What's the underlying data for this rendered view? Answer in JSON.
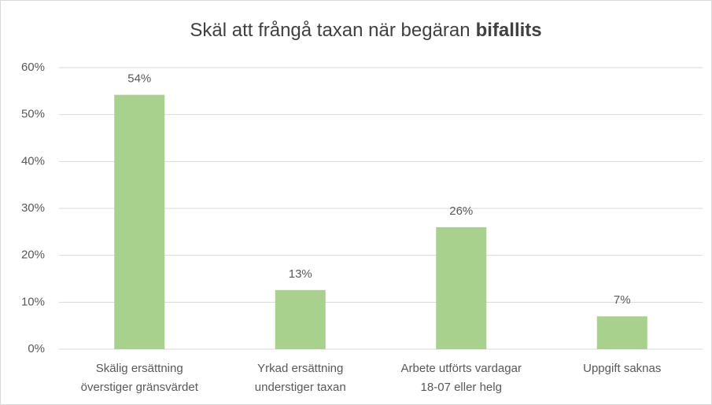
{
  "chart_data": {
    "type": "bar",
    "title": [
      "Skäl att frångå taxan när begäran",
      "bifallits"
    ],
    "categories": [
      [
        "Skälig ersättning",
        "överstiger gränsvärdet"
      ],
      [
        "Yrkad ersättning",
        "understiger taxan"
      ],
      [
        "Arbete utförts vardagar",
        "18-07 eller helg"
      ],
      [
        "Uppgift saknas"
      ]
    ],
    "values": [
      54.2,
      12.6,
      26,
      7
    ],
    "value_labels": [
      "54%",
      "13%",
      "26%",
      "7%"
    ],
    "color": "#a9d18e",
    "ylim": [
      0,
      60
    ],
    "yticks": [
      {
        "value": 0,
        "label": "0%"
      },
      {
        "value": 10,
        "label": "10%"
      },
      {
        "value": 20,
        "label": "20%"
      },
      {
        "value": 30,
        "label": "30%"
      },
      {
        "value": 40,
        "label": "40%"
      },
      {
        "value": 50,
        "label": "50%"
      },
      {
        "value": 60,
        "label": "60%"
      }
    ],
    "grid": true
  }
}
